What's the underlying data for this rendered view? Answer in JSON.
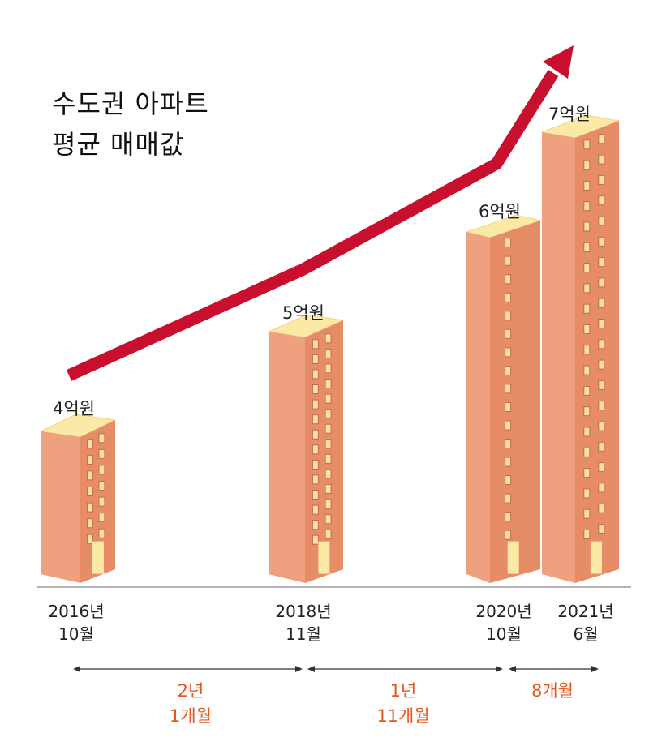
{
  "title_line1": "수도권 아파트",
  "title_line2": "평균 매매값",
  "colors": {
    "trend_arrow": "#c8102e",
    "building_front": "#efa07e",
    "building_side": "#e68c66",
    "building_roof": "#fbe9a6",
    "window": "#f7dfad",
    "interval_text": "#e4571c"
  },
  "chart_data": {
    "type": "bar",
    "unit": "억원",
    "categories": [
      "2016년 10월",
      "2018년 11월",
      "2020년 10월",
      "2021년 6월"
    ],
    "values": [
      4,
      5,
      6,
      7
    ],
    "value_labels": [
      "4억원",
      "5억원",
      "6억원",
      "7억원"
    ],
    "date_labels": [
      {
        "year": "2016년",
        "month": "10월"
      },
      {
        "year": "2018년",
        "month": "11월"
      },
      {
        "year": "2020년",
        "month": "10월"
      },
      {
        "year": "2021년",
        "month": "6월"
      }
    ],
    "intervals": [
      {
        "line1": "2년",
        "line2": "1개월"
      },
      {
        "line1": "1년",
        "line2": "11개월"
      },
      {
        "line1": "8개월",
        "line2": ""
      }
    ]
  }
}
